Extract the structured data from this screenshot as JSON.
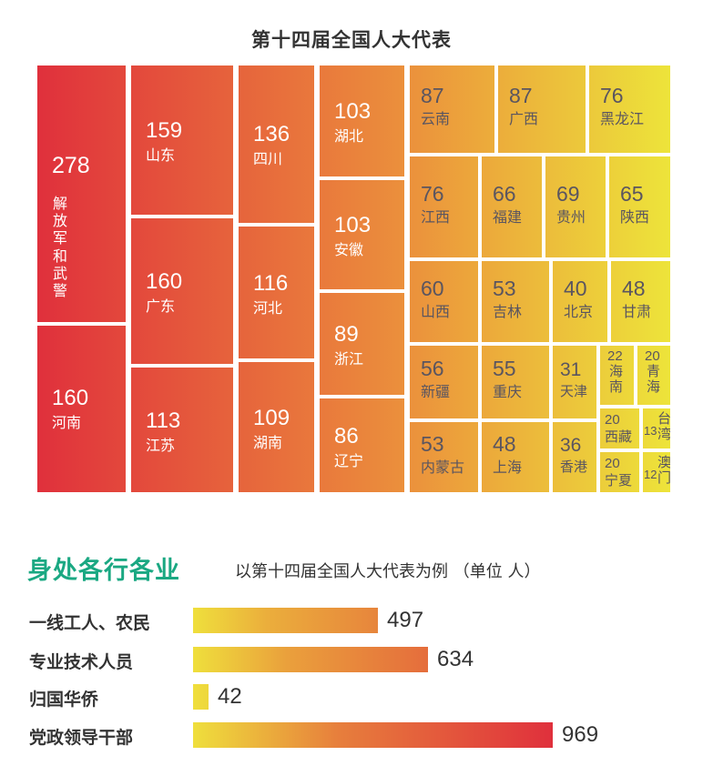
{
  "chart_data": [
    {
      "type": "treemap",
      "title": "第十四届全国人大代表",
      "items": [
        {
          "label": "解放军和武警",
          "value": 278
        },
        {
          "label": "河南",
          "value": 160
        },
        {
          "label": "山东",
          "value": 159
        },
        {
          "label": "广东",
          "value": 160
        },
        {
          "label": "江苏",
          "value": 113
        },
        {
          "label": "四川",
          "value": 136
        },
        {
          "label": "河北",
          "value": 116
        },
        {
          "label": "湖南",
          "value": 109
        },
        {
          "label": "湖北",
          "value": 103
        },
        {
          "label": "安徽",
          "value": 103
        },
        {
          "label": "浙江",
          "value": 89
        },
        {
          "label": "辽宁",
          "value": 86
        },
        {
          "label": "云南",
          "value": 87
        },
        {
          "label": "广西",
          "value": 87
        },
        {
          "label": "黑龙江",
          "value": 76
        },
        {
          "label": "江西",
          "value": 76
        },
        {
          "label": "福建",
          "value": 66
        },
        {
          "label": "贵州",
          "value": 69
        },
        {
          "label": "陕西",
          "value": 65
        },
        {
          "label": "山西",
          "value": 60
        },
        {
          "label": "吉林",
          "value": 53
        },
        {
          "label": "北京",
          "value": 40
        },
        {
          "label": "甘肃",
          "value": 48
        },
        {
          "label": "新疆",
          "value": 56
        },
        {
          "label": "重庆",
          "value": 55
        },
        {
          "label": "天津",
          "value": 31
        },
        {
          "label": "海南",
          "value": 22
        },
        {
          "label": "青海",
          "value": 20
        },
        {
          "label": "内蒙古",
          "value": 53
        },
        {
          "label": "上海",
          "value": 48
        },
        {
          "label": "香港",
          "value": 36
        },
        {
          "label": "西藏",
          "value": 20
        },
        {
          "label": "台湾",
          "value": 13
        },
        {
          "label": "宁夏",
          "value": 20
        },
        {
          "label": "澳门",
          "value": 12
        }
      ]
    },
    {
      "type": "bar",
      "orientation": "horizontal",
      "title": "身处各行各业",
      "subtitle": "以第十四届全国人大代表为例 （单位 人）",
      "categories": [
        "一线工人、农民",
        "专业技术人员",
        "归国华侨",
        "党政领导干部"
      ],
      "values": [
        497,
        634,
        42,
        969
      ],
      "xlim": [
        0,
        1000
      ]
    }
  ],
  "colors": {
    "treemap_high": "#e0303c",
    "treemap_mid": "#eb8a3c",
    "treemap_low": "#ede43a",
    "section_title": "#1aa882",
    "bar_start": "#efdf3c",
    "bar_end": "#e0303c"
  }
}
